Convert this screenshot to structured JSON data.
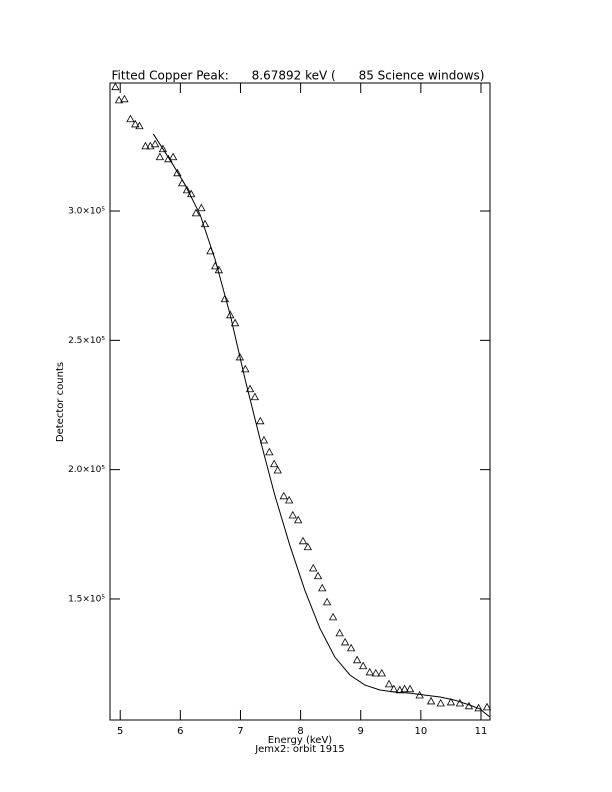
{
  "chart_data": {
    "type": "scatter",
    "title": "Fitted Copper Peak:      8.67892 keV (      85 Science windows)",
    "xlabel": "Energy (keV)",
    "subtitle": "Jemx2: orbit 1915",
    "ylabel": "Detector counts",
    "xlim": [
      4.83,
      11.15
    ],
    "ylim": [
      103200,
      349500
    ],
    "xticks": [
      5,
      6,
      7,
      8,
      9,
      10,
      11
    ],
    "yticks": [
      {
        "value": 150000,
        "label": "1.5×10⁵"
      },
      {
        "value": 200000,
        "label": "2.0×10⁵"
      },
      {
        "value": 250000,
        "label": "2.5×10⁵"
      },
      {
        "value": 300000,
        "label": "3.0×10⁵"
      }
    ],
    "series": [
      {
        "style": "markers",
        "marker": "triangle",
        "color": "#000000",
        "x": [
          4.92,
          4.98,
          5.07,
          5.17,
          5.25,
          5.32,
          5.42,
          5.5,
          5.58,
          5.66,
          5.71,
          5.8,
          5.88,
          5.95,
          6.03,
          6.11,
          6.18,
          6.26,
          6.35,
          6.41,
          6.5,
          6.58,
          6.64,
          6.74,
          6.83,
          6.91,
          6.99,
          7.08,
          7.16,
          7.24,
          7.33,
          7.39,
          7.48,
          7.56,
          7.62,
          7.72,
          7.81,
          7.87,
          7.96,
          8.04,
          8.12,
          8.21,
          8.29,
          8.36,
          8.44,
          8.54,
          8.65,
          8.74,
          8.84,
          8.94,
          9.04,
          9.15,
          9.25,
          9.35,
          9.47,
          9.55,
          9.65,
          9.73,
          9.82,
          9.98,
          10.17,
          10.33,
          10.5,
          10.65,
          10.8,
          10.96,
          11.1
        ],
        "values": [
          348000,
          342900,
          343300,
          335600,
          333600,
          332900,
          325100,
          325100,
          325900,
          320900,
          324000,
          320100,
          320900,
          314700,
          310800,
          308100,
          306600,
          299200,
          301200,
          295000,
          284500,
          278700,
          277200,
          266000,
          259800,
          256700,
          243500,
          238900,
          231200,
          228100,
          218800,
          211400,
          206800,
          202200,
          199800,
          189800,
          188200,
          182400,
          180500,
          172400,
          170100,
          161900,
          158900,
          154200,
          148800,
          143000,
          136800,
          133300,
          131000,
          126400,
          124100,
          121700,
          121300,
          121300,
          117100,
          115200,
          114800,
          115200,
          115200,
          112800,
          110500,
          109700,
          110100,
          109700,
          108600,
          107800,
          108200
        ]
      },
      {
        "style": "line",
        "color": "#000000",
        "x": [
          5.55,
          5.83,
          6.08,
          6.33,
          6.58,
          6.83,
          7.08,
          7.33,
          7.57,
          7.82,
          8.07,
          8.32,
          8.57,
          8.82,
          9.07,
          9.32,
          9.57,
          9.82,
          10.07,
          10.32,
          10.56,
          10.81,
          10.98,
          11.15
        ],
        "values": [
          329800,
          319700,
          310100,
          298500,
          281100,
          259800,
          234600,
          211400,
          190200,
          170800,
          153400,
          138700,
          127500,
          120600,
          116700,
          114800,
          114000,
          113600,
          112800,
          112100,
          110900,
          109000,
          107500,
          104300
        ]
      }
    ]
  }
}
